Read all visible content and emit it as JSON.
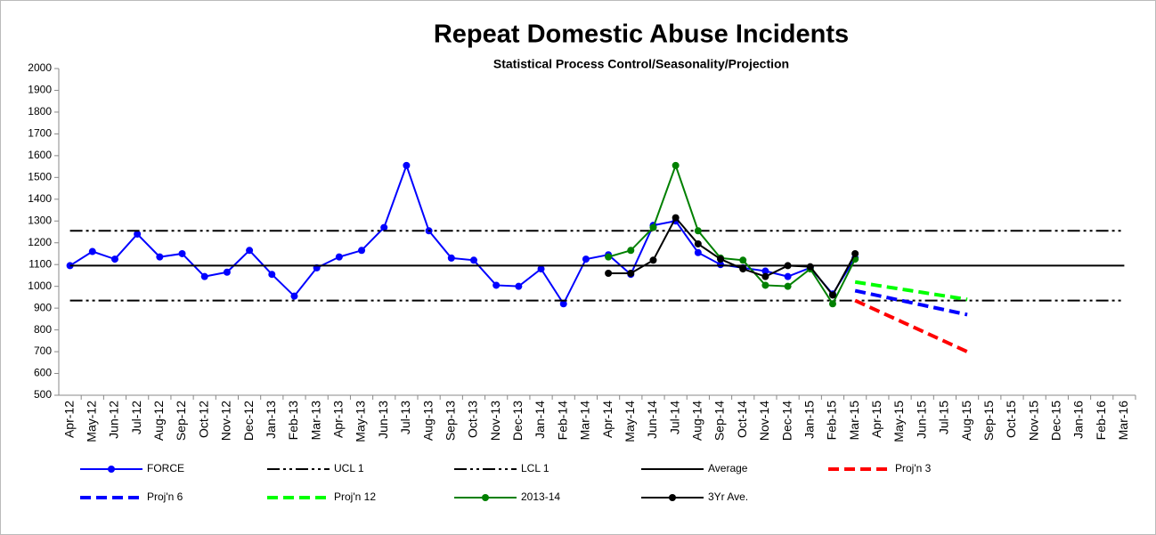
{
  "chart_data": {
    "type": "line",
    "title": "Repeat Domestic Abuse Incidents",
    "subtitle": "Statistical Process Control/Seasonality/Projection",
    "categories": [
      "Apr-12",
      "May-12",
      "Jun-12",
      "Jul-12",
      "Aug-12",
      "Sep-12",
      "Oct-12",
      "Nov-12",
      "Dec-12",
      "Jan-13",
      "Feb-13",
      "Mar-13",
      "Apr-13",
      "May-13",
      "Jun-13",
      "Jul-13",
      "Aug-13",
      "Sep-13",
      "Oct-13",
      "Nov-13",
      "Dec-13",
      "Jan-14",
      "Feb-14",
      "Mar-14",
      "Apr-14",
      "May-14",
      "Jun-14",
      "Jul-14",
      "Aug-14",
      "Sep-14",
      "Oct-14",
      "Nov-14",
      "Dec-14",
      "Jan-15",
      "Feb-15",
      "Mar-15",
      "Apr-15",
      "May-15",
      "Jun-15",
      "Jul-15",
      "Aug-15",
      "Sep-15",
      "Oct-15",
      "Nov-15",
      "Dec-15",
      "Jan-16",
      "Feb-16",
      "Mar-16"
    ],
    "ylim": [
      500,
      2000
    ],
    "yticks": [
      500,
      600,
      700,
      800,
      900,
      1000,
      1100,
      1200,
      1300,
      1400,
      1500,
      1600,
      1700,
      1800,
      1900,
      2000
    ],
    "series": [
      {
        "name": "FORCE",
        "color": "#0000ff",
        "dash": "solid",
        "marker": true,
        "values": [
          1095,
          1160,
          1125,
          1240,
          1135,
          1150,
          1045,
          1065,
          1165,
          1055,
          955,
          1085,
          1135,
          1165,
          1270,
          1555,
          1255,
          1130,
          1120,
          1005,
          1000,
          1080,
          920,
          1125,
          1145,
          1055,
          1280,
          1300,
          1155,
          1100,
          1085,
          1070,
          1045,
          1085,
          965,
          1130,
          null,
          null,
          null,
          null,
          null,
          null,
          null,
          null,
          null,
          null,
          null,
          null
        ]
      },
      {
        "name": "UCL 1",
        "color": "#000000",
        "dash": "dashdotdot",
        "marker": false,
        "values": [
          1255,
          1255,
          1255,
          1255,
          1255,
          1255,
          1255,
          1255,
          1255,
          1255,
          1255,
          1255,
          1255,
          1255,
          1255,
          1255,
          1255,
          1255,
          1255,
          1255,
          1255,
          1255,
          1255,
          1255,
          1255,
          1255,
          1255,
          1255,
          1255,
          1255,
          1255,
          1255,
          1255,
          1255,
          1255,
          1255,
          1255,
          1255,
          1255,
          1255,
          1255,
          1255,
          1255,
          1255,
          1255,
          1255,
          1255,
          1255
        ]
      },
      {
        "name": "LCL 1",
        "color": "#000000",
        "dash": "dashdotdot",
        "marker": false,
        "values": [
          935,
          935,
          935,
          935,
          935,
          935,
          935,
          935,
          935,
          935,
          935,
          935,
          935,
          935,
          935,
          935,
          935,
          935,
          935,
          935,
          935,
          935,
          935,
          935,
          935,
          935,
          935,
          935,
          935,
          935,
          935,
          935,
          935,
          935,
          935,
          935,
          935,
          935,
          935,
          935,
          935,
          935,
          935,
          935,
          935,
          935,
          935,
          935
        ]
      },
      {
        "name": "Average",
        "color": "#000000",
        "dash": "solid",
        "marker": false,
        "values": [
          1095,
          1095,
          1095,
          1095,
          1095,
          1095,
          1095,
          1095,
          1095,
          1095,
          1095,
          1095,
          1095,
          1095,
          1095,
          1095,
          1095,
          1095,
          1095,
          1095,
          1095,
          1095,
          1095,
          1095,
          1095,
          1095,
          1095,
          1095,
          1095,
          1095,
          1095,
          1095,
          1095,
          1095,
          1095,
          1095,
          1095,
          1095,
          1095,
          1095,
          1095,
          1095,
          1095,
          1095,
          1095,
          1095,
          1095,
          1095
        ]
      },
      {
        "name": "Proj'n 3",
        "color": "#ff0000",
        "dash": "dash",
        "marker": false,
        "values": [
          null,
          null,
          null,
          null,
          null,
          null,
          null,
          null,
          null,
          null,
          null,
          null,
          null,
          null,
          null,
          null,
          null,
          null,
          null,
          null,
          null,
          null,
          null,
          null,
          null,
          null,
          null,
          null,
          null,
          null,
          null,
          null,
          null,
          null,
          null,
          935,
          888,
          841,
          794,
          747,
          700,
          null,
          null,
          null,
          null,
          null,
          null,
          null
        ]
      },
      {
        "name": "Proj'n 6",
        "color": "#0000ff",
        "dash": "dash",
        "marker": false,
        "values": [
          null,
          null,
          null,
          null,
          null,
          null,
          null,
          null,
          null,
          null,
          null,
          null,
          null,
          null,
          null,
          null,
          null,
          null,
          null,
          null,
          null,
          null,
          null,
          null,
          null,
          null,
          null,
          null,
          null,
          null,
          null,
          null,
          null,
          null,
          null,
          980,
          958,
          936,
          914,
          892,
          870,
          null,
          null,
          null,
          null,
          null,
          null,
          null
        ]
      },
      {
        "name": "Proj'n 12",
        "color": "#00ff00",
        "dash": "dash",
        "marker": false,
        "values": [
          null,
          null,
          null,
          null,
          null,
          null,
          null,
          null,
          null,
          null,
          null,
          null,
          null,
          null,
          null,
          null,
          null,
          null,
          null,
          null,
          null,
          null,
          null,
          null,
          null,
          null,
          null,
          null,
          null,
          null,
          null,
          null,
          null,
          null,
          null,
          1020,
          1004,
          988,
          972,
          956,
          940,
          null,
          null,
          null,
          null,
          null,
          null,
          null
        ]
      },
      {
        "name": "2013-14",
        "color": "#008000",
        "dash": "solid",
        "marker": true,
        "values": [
          null,
          null,
          null,
          null,
          null,
          null,
          null,
          null,
          null,
          null,
          null,
          null,
          null,
          null,
          null,
          null,
          null,
          null,
          null,
          null,
          null,
          null,
          null,
          null,
          1135,
          1165,
          1270,
          1555,
          1255,
          1130,
          1120,
          1005,
          1000,
          1080,
          920,
          1125,
          null,
          null,
          null,
          null,
          null,
          null,
          null,
          null,
          null,
          null,
          null,
          null
        ]
      },
      {
        "name": "3Yr Ave.",
        "color": "#000000",
        "dash": "solid",
        "marker": true,
        "values": [
          null,
          null,
          null,
          null,
          null,
          null,
          null,
          null,
          null,
          null,
          null,
          null,
          null,
          null,
          null,
          null,
          null,
          null,
          null,
          null,
          null,
          null,
          null,
          null,
          1060,
          1060,
          1120,
          1315,
          1195,
          1125,
          1080,
          1045,
          1095,
          1090,
          960,
          1150,
          null,
          null,
          null,
          null,
          null,
          null,
          null,
          null,
          null,
          null,
          null,
          null
        ]
      }
    ]
  }
}
